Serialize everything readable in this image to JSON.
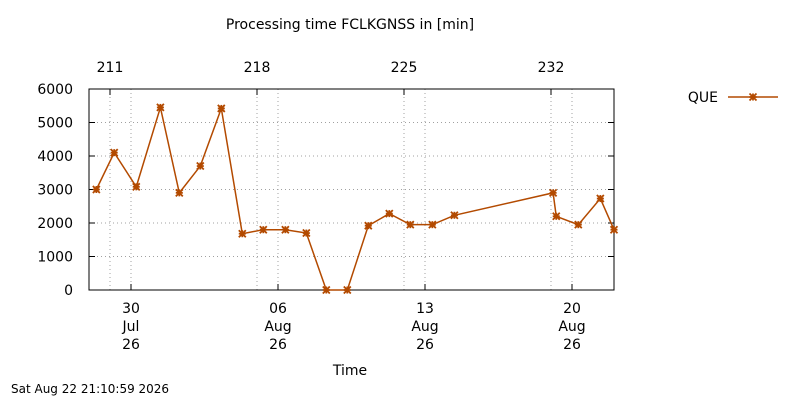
{
  "generated_at": "Sat Aug 22 21:10:59 2026",
  "chart_data": {
    "type": "line",
    "title": "Processing time FCLKGNSS in [min]",
    "xlabel": "Time",
    "ylabel": "",
    "ylim": [
      0,
      6000
    ],
    "yticks": [
      "0",
      "1000",
      "2000",
      "3000",
      "4000",
      "5000",
      "6000"
    ],
    "x_ticks": [
      {
        "x": 2.0,
        "lines": [
          "30",
          "Jul",
          "26"
        ]
      },
      {
        "x": 9.0,
        "lines": [
          "06",
          "Aug",
          "26"
        ]
      },
      {
        "x": 16.0,
        "lines": [
          "13",
          "Aug",
          "26"
        ]
      },
      {
        "x": 23.0,
        "lines": [
          "20",
          "Aug",
          "26"
        ]
      }
    ],
    "top_ticks": [
      {
        "x": 1.0,
        "label": "211"
      },
      {
        "x": 8.0,
        "label": "218"
      },
      {
        "x": 15.0,
        "label": "225"
      },
      {
        "x": 22.0,
        "label": "232"
      }
    ],
    "xlim": [
      0.0,
      25.0
    ],
    "grid": true,
    "legend": "top-right",
    "series": [
      {
        "name": "QUE",
        "color": "#b34a00",
        "points": [
          {
            "x": 0.35,
            "y": 3000
          },
          {
            "x": 1.2,
            "y": 4100
          },
          {
            "x": 2.25,
            "y": 3080
          },
          {
            "x": 3.4,
            "y": 5450
          },
          {
            "x": 4.3,
            "y": 2900
          },
          {
            "x": 5.3,
            "y": 3700
          },
          {
            "x": 6.3,
            "y": 5420
          },
          {
            "x": 7.3,
            "y": 1680
          },
          {
            "x": 8.3,
            "y": 1800
          },
          {
            "x": 9.35,
            "y": 1800
          },
          {
            "x": 10.35,
            "y": 1700
          },
          {
            "x": 11.3,
            "y": 0
          },
          {
            "x": 12.3,
            "y": 0
          },
          {
            "x": 13.3,
            "y": 1920
          },
          {
            "x": 14.3,
            "y": 2280
          },
          {
            "x": 15.3,
            "y": 1950
          },
          {
            "x": 16.35,
            "y": 1950
          },
          {
            "x": 17.4,
            "y": 2230
          },
          {
            "x": 22.1,
            "y": 2900
          },
          {
            "x": 22.25,
            "y": 2200
          },
          {
            "x": 23.3,
            "y": 1950
          },
          {
            "x": 24.35,
            "y": 2730
          },
          {
            "x": 25.0,
            "y": 1800
          }
        ]
      }
    ]
  }
}
